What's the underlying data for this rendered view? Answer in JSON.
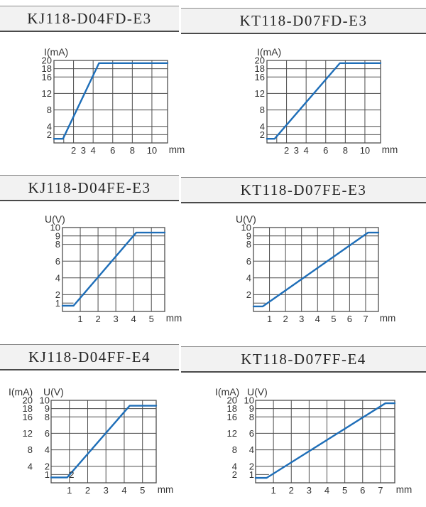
{
  "colors": {
    "curve_blue": "#1e6eb8",
    "grid": "#4d4d4d",
    "header_bg": "#f2f2f2",
    "header_border": "#4a4a4a",
    "text": "#333333"
  },
  "sections": [
    {
      "left_title": "KJ118-D04FD-E3",
      "right_title": "KT118-D07FD-E3"
    },
    {
      "left_title": "KJ118-D04FE-E3",
      "right_title": "KT118-D07FE-E3"
    },
    {
      "left_title": "KJ118-D04FF-E4",
      "right_title": "KT118-D07FF-E4"
    }
  ],
  "chart_data": [
    {
      "type": "line",
      "title": "KJ118-D04FD-E3",
      "y_axis_titles": [
        {
          "text": "I(mA)",
          "dx": -14
        }
      ],
      "ylim": [
        0,
        20
      ],
      "xlim": [
        0,
        11.6
      ],
      "y_gridlines": [
        2,
        4,
        8,
        12,
        16,
        18
      ],
      "x_gridlines": [
        2,
        4,
        6,
        8,
        10
      ],
      "short_segment": {
        "type": "v",
        "x": 1,
        "to": 2
      },
      "y_tick_columns": [
        {
          "dx": -3,
          "ticks": [
            {
              "v": 20,
              "l": "20"
            },
            {
              "v": 18,
              "l": "18"
            },
            {
              "v": 16,
              "l": "16"
            },
            {
              "v": 12,
              "l": "12"
            },
            {
              "v": 8,
              "l": "8"
            },
            {
              "v": 4,
              "l": "4"
            },
            {
              "v": 2,
              "l": "2"
            }
          ]
        }
      ],
      "x_ticks": [
        {
          "v": 2,
          "l": "2"
        },
        {
          "v": 3,
          "l": "3"
        },
        {
          "v": 4,
          "l": "4"
        },
        {
          "v": 6,
          "l": "6"
        },
        {
          "v": 8,
          "l": "8"
        },
        {
          "v": 10,
          "l": "10"
        }
      ],
      "x_unit": "mm",
      "curve": [
        [
          0,
          1.0
        ],
        [
          0.92,
          1.0
        ],
        [
          4.6,
          19.35
        ],
        [
          11.6,
          19.35
        ]
      ]
    },
    {
      "type": "line",
      "title": "KT118-D07FD-E3",
      "y_axis_titles": [
        {
          "text": "I(mA)",
          "dx": -14
        }
      ],
      "ylim": [
        0,
        20
      ],
      "xlim": [
        0,
        11.6
      ],
      "y_gridlines": [
        2,
        4,
        8,
        12,
        16,
        18
      ],
      "x_gridlines": [
        2,
        4,
        6,
        8,
        10
      ],
      "short_segment": {
        "type": "v",
        "x": 1,
        "to": 2
      },
      "y_tick_columns": [
        {
          "dx": -3,
          "ticks": [
            {
              "v": 20,
              "l": "20"
            },
            {
              "v": 18,
              "l": "18"
            },
            {
              "v": 16,
              "l": "16"
            },
            {
              "v": 12,
              "l": "12"
            },
            {
              "v": 8,
              "l": "8"
            },
            {
              "v": 4,
              "l": "4"
            },
            {
              "v": 2,
              "l": "2"
            }
          ]
        }
      ],
      "x_ticks": [
        {
          "v": 2,
          "l": "2"
        },
        {
          "v": 3,
          "l": "3"
        },
        {
          "v": 4,
          "l": "4"
        },
        {
          "v": 6,
          "l": "6"
        },
        {
          "v": 8,
          "l": "8"
        },
        {
          "v": 10,
          "l": "10"
        }
      ],
      "x_unit": "mm",
      "curve": [
        [
          0,
          1.0
        ],
        [
          0.78,
          1.0
        ],
        [
          7.45,
          19.35
        ],
        [
          11.6,
          19.35
        ]
      ]
    },
    {
      "type": "line",
      "title": "KJ118-D04FE-E3",
      "y_axis_titles": [
        {
          "text": "U(V)",
          "dx": -25
        }
      ],
      "ylim": [
        0,
        10
      ],
      "xlim": [
        0,
        5.75
      ],
      "y_gridlines": [
        2,
        4,
        6,
        8,
        9
      ],
      "x_gridlines": [
        1,
        2,
        3,
        4,
        5
      ],
      "short_segment": {
        "type": "h",
        "y": 1,
        "to": 0.62
      },
      "y_tick_columns": [
        {
          "dx": -3,
          "ticks": [
            {
              "v": 10,
              "l": "10"
            },
            {
              "v": 9,
              "l": "9"
            },
            {
              "v": 8,
              "l": "8"
            },
            {
              "v": 6,
              "l": "6"
            },
            {
              "v": 4,
              "l": "4"
            },
            {
              "v": 2,
              "l": "2"
            },
            {
              "v": 1,
              "l": "1"
            }
          ]
        }
      ],
      "x_ticks": [
        {
          "v": 1,
          "l": "1"
        },
        {
          "v": 2,
          "l": "2"
        },
        {
          "v": 3,
          "l": "3"
        },
        {
          "v": 4,
          "l": "4"
        },
        {
          "v": 5,
          "l": "5"
        }
      ],
      "x_unit": "mm",
      "curve": [
        [
          0,
          0.68
        ],
        [
          0.62,
          0.68
        ],
        [
          4.15,
          9.4
        ],
        [
          5.75,
          9.4
        ]
      ]
    },
    {
      "type": "line",
      "title": "KT118-D07FE-E3",
      "y_axis_titles": [
        {
          "text": "U(V)",
          "dx": -25
        }
      ],
      "ylim": [
        0,
        10
      ],
      "xlim": [
        0,
        7.8
      ],
      "y_gridlines": [
        2,
        4,
        6,
        8,
        9
      ],
      "x_gridlines": [
        1,
        2,
        3,
        4,
        5,
        6,
        7
      ],
      "short_segment": {
        "type": "h",
        "y": 1,
        "to": 0.75
      },
      "y_tick_columns": [
        {
          "dx": -3,
          "ticks": [
            {
              "v": 10,
              "l": "10"
            },
            {
              "v": 9,
              "l": "9"
            },
            {
              "v": 8,
              "l": "8"
            },
            {
              "v": 6,
              "l": "6"
            },
            {
              "v": 4,
              "l": "4"
            },
            {
              "v": 2,
              "l": "2"
            }
          ]
        }
      ],
      "x_ticks": [
        {
          "v": 1,
          "l": "1"
        },
        {
          "v": 2,
          "l": "2"
        },
        {
          "v": 3,
          "l": "3"
        },
        {
          "v": 4,
          "l": "4"
        },
        {
          "v": 5,
          "l": "5"
        },
        {
          "v": 6,
          "l": "6"
        },
        {
          "v": 7,
          "l": "7"
        }
      ],
      "x_unit": "mm",
      "curve": [
        [
          0,
          0.6
        ],
        [
          0.58,
          0.6
        ],
        [
          7.15,
          9.4
        ],
        [
          7.8,
          9.4
        ]
      ]
    },
    {
      "type": "line",
      "title": "KJ118-D04FF-E4",
      "y_axis_titles": [
        {
          "text": "I(mA)",
          "dx": -60
        },
        {
          "text": "U(V)",
          "dx": -11
        }
      ],
      "ylim": [
        0,
        10
      ],
      "xlim": [
        0,
        5.75
      ],
      "y_gridlines": [
        2,
        4,
        6,
        8,
        9
      ],
      "x_gridlines": [
        1,
        2,
        3,
        4,
        5
      ],
      "short_segment": {
        "type": "h",
        "y": 1,
        "to": 1.0
      },
      "stray_label": {
        "text": "2",
        "x": 1.12,
        "y": 1
      },
      "y_tick_columns": [
        {
          "dx": -26,
          "ticks": [
            {
              "v": 10,
              "l": "20"
            },
            {
              "v": 9,
              "l": "18"
            },
            {
              "v": 8,
              "l": "16"
            },
            {
              "v": 6,
              "l": "12"
            },
            {
              "v": 4,
              "l": "8"
            },
            {
              "v": 2,
              "l": "4"
            }
          ]
        },
        {
          "dx": -2,
          "ticks": [
            {
              "v": 10,
              "l": "10"
            },
            {
              "v": 9,
              "l": "9"
            },
            {
              "v": 8,
              "l": "8"
            },
            {
              "v": 6,
              "l": "6"
            },
            {
              "v": 4,
              "l": "4"
            },
            {
              "v": 2,
              "l": "2"
            },
            {
              "v": 1,
              "l": "1"
            }
          ]
        }
      ],
      "x_ticks": [
        {
          "v": 1,
          "l": "1"
        },
        {
          "v": 2,
          "l": "2"
        },
        {
          "v": 3,
          "l": "3"
        },
        {
          "v": 4,
          "l": "4"
        },
        {
          "v": 5,
          "l": "5"
        }
      ],
      "x_unit": "mm",
      "curve": [
        [
          0,
          0.65
        ],
        [
          0.88,
          0.65
        ],
        [
          4.3,
          9.35
        ],
        [
          5.75,
          9.35
        ]
      ]
    },
    {
      "type": "line",
      "title": "KT118-D07FF-E4",
      "y_axis_titles": [
        {
          "text": "I(mA)",
          "dx": -57
        },
        {
          "text": "U(V)",
          "dx": -12
        }
      ],
      "ylim": [
        0,
        10
      ],
      "xlim": [
        0,
        7.8
      ],
      "y_gridlines": [
        2,
        4,
        6,
        8,
        9
      ],
      "x_gridlines": [
        1,
        2,
        3,
        4,
        5,
        6,
        7
      ],
      "short_segment": {
        "type": "h",
        "y": 1,
        "to": 0.75
      },
      "y_tick_columns": [
        {
          "dx": -26,
          "ticks": [
            {
              "v": 10,
              "l": "20"
            },
            {
              "v": 9,
              "l": "18"
            },
            {
              "v": 8,
              "l": "16"
            },
            {
              "v": 6,
              "l": "12"
            },
            {
              "v": 4,
              "l": "8"
            },
            {
              "v": 2,
              "l": "4"
            },
            {
              "v": 1,
              "l": "2"
            }
          ]
        },
        {
          "dx": -2,
          "ticks": [
            {
              "v": 10,
              "l": "10"
            },
            {
              "v": 9,
              "l": "9"
            },
            {
              "v": 8,
              "l": "8"
            },
            {
              "v": 6,
              "l": "6"
            },
            {
              "v": 4,
              "l": "4"
            },
            {
              "v": 2,
              "l": "2"
            },
            {
              "v": 1,
              "l": "1"
            }
          ]
        }
      ],
      "x_ticks": [
        {
          "v": 1,
          "l": "1"
        },
        {
          "v": 2,
          "l": "2"
        },
        {
          "v": 3,
          "l": "3"
        },
        {
          "v": 4,
          "l": "4"
        },
        {
          "v": 5,
          "l": "5"
        },
        {
          "v": 6,
          "l": "6"
        },
        {
          "v": 7,
          "l": "7"
        }
      ],
      "x_unit": "mm",
      "curve": [
        [
          0,
          0.6
        ],
        [
          0.62,
          0.6
        ],
        [
          7.28,
          9.65
        ],
        [
          7.8,
          9.65
        ]
      ]
    }
  ]
}
